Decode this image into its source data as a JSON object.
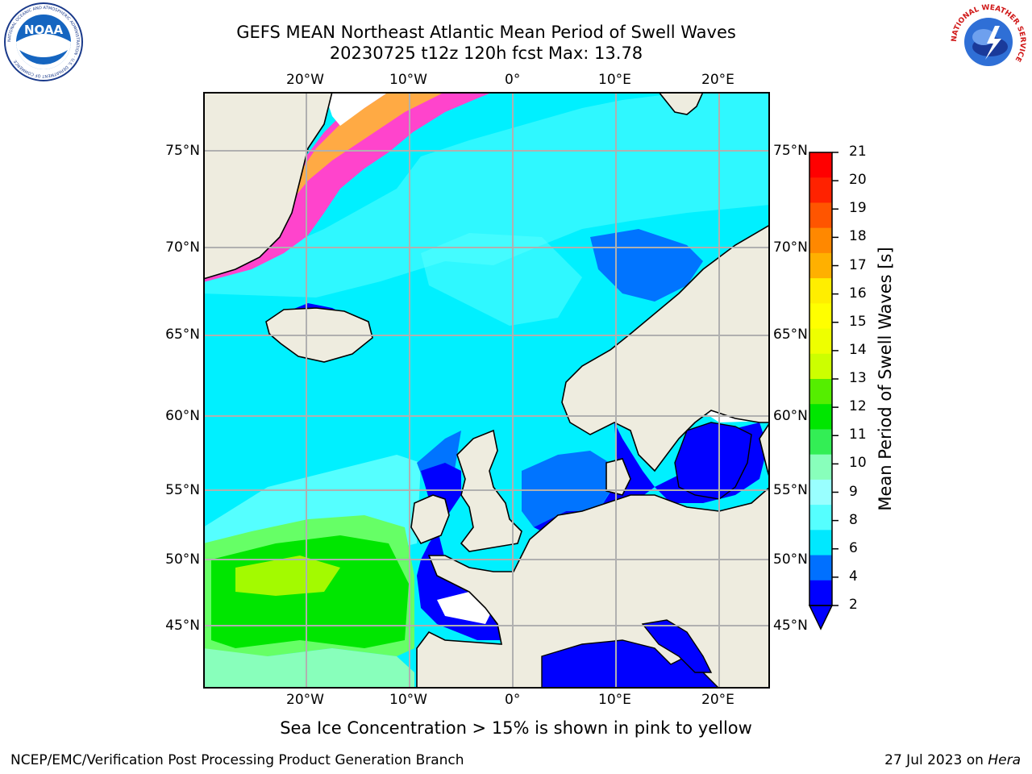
{
  "header": {
    "title": "GEFS MEAN Northeast Atlantic Mean Period of Swell Waves",
    "subtitle": "20230725 t12z 120h fcst   Max: 13.78"
  },
  "map": {
    "lon_labels": [
      "20°W",
      "10°W",
      "0°",
      "10°E",
      "20°E"
    ],
    "lat_labels": [
      "75°N",
      "70°N",
      "65°N",
      "60°N",
      "55°N",
      "50°N",
      "45°N"
    ],
    "colors": {
      "land": "#eeecdf",
      "sea_light_cyan": "#55ffff",
      "sea_cyan": "#00f0ff",
      "sea_pale": "#99ffff",
      "sea_blue": "#0074ff",
      "sea_dark_blue": "#0000ff",
      "swell_green": "#00e600",
      "swell_light_green": "#66ff66",
      "swell_yellowgreen": "#ccff00",
      "ice_pink": "#ff44cc",
      "ice_orange": "#ffaa44",
      "grid": "#b0b0b0"
    }
  },
  "colorbar": {
    "label": "Mean Period of Swell Waves [s]",
    "ticks": [
      "21",
      "20",
      "19",
      "18",
      "17",
      "16",
      "15",
      "14",
      "13",
      "12",
      "11",
      "10",
      "9",
      "8",
      "6",
      "4",
      "2"
    ],
    "colors": [
      "#ff0000",
      "#ff2200",
      "#ff5500",
      "#ff8800",
      "#ffb000",
      "#ffee00",
      "#ffff00",
      "#eeff00",
      "#ccff00",
      "#55ee00",
      "#00e600",
      "#33ee55",
      "#88ffbb",
      "#99ffff",
      "#55ffff",
      "#00e8ff",
      "#0070ff",
      "#0000ff"
    ]
  },
  "footer": {
    "note": "Sea Ice Concentration > 15% is shown in pink to yellow",
    "credit": "NCEP/EMC/Verification Post Processing Product Generation Branch",
    "date": "27 Jul 2023 on",
    "host": "Hera"
  },
  "logos": {
    "noaa_text": "NOAA",
    "noaa_ring": "NATIONAL OCEANIC AND ATMOSPHERIC ADMINISTRATION · U.S. DEPARTMENT OF COMMERCE",
    "nws_ring": "NATIONAL WEATHER SERVICE"
  }
}
